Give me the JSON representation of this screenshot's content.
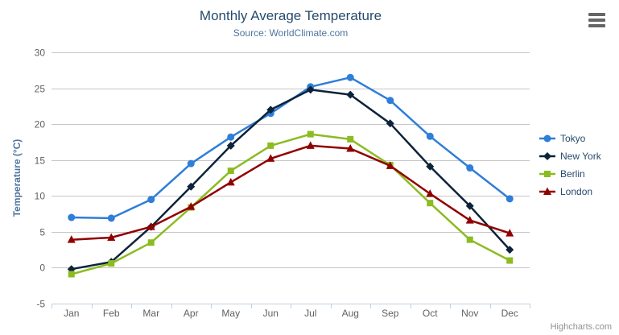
{
  "header": {
    "title": "Monthly Average Temperature",
    "subtitle": "Source: WorldClimate.com"
  },
  "credit": {
    "label": "Highcharts.com"
  },
  "export_menu": {
    "icon": "hamburger-icon"
  },
  "chart_data": {
    "type": "line",
    "title": "Monthly Average Temperature",
    "subtitle": "Source: WorldClimate.com",
    "categories": [
      "Jan",
      "Feb",
      "Mar",
      "Apr",
      "May",
      "Jun",
      "Jul",
      "Aug",
      "Sep",
      "Oct",
      "Nov",
      "Dec"
    ],
    "series": [
      {
        "name": "Tokyo",
        "color": "#2f7ed8",
        "marker": "circle",
        "values": [
          7.0,
          6.9,
          9.5,
          14.5,
          18.2,
          21.5,
          25.2,
          26.5,
          23.3,
          18.3,
          13.9,
          9.6
        ]
      },
      {
        "name": "New York",
        "color": "#0d233a",
        "marker": "diamond",
        "values": [
          -0.2,
          0.8,
          5.7,
          11.3,
          17.0,
          22.0,
          24.8,
          24.1,
          20.1,
          14.1,
          8.6,
          2.5
        ]
      },
      {
        "name": "Berlin",
        "color": "#8bbc21",
        "marker": "square",
        "values": [
          -0.9,
          0.6,
          3.5,
          8.4,
          13.5,
          17.0,
          18.6,
          17.9,
          14.3,
          9.0,
          3.9,
          1.0
        ]
      },
      {
        "name": "London",
        "color": "#910000",
        "marker": "triangle",
        "values": [
          3.9,
          4.2,
          5.7,
          8.5,
          11.9,
          15.2,
          17.0,
          16.6,
          14.2,
          10.3,
          6.6,
          4.8
        ]
      }
    ],
    "xlabel": "",
    "ylabel": "Temperature (°C)",
    "ylim": [
      -5,
      30
    ],
    "yticks": [
      -5,
      0,
      5,
      10,
      15,
      20,
      25,
      30
    ],
    "grid": true,
    "legend_position": "right"
  },
  "colors": {
    "background": "#ffffff",
    "title": "#274b6d",
    "subtitle": "#4d759e",
    "axis_title": "#4d759e",
    "tick_label": "#606060",
    "gridline": "#c6c6c6",
    "axis_line": "#c0d0e0",
    "legend_text": "#274b6d",
    "menu_icon": "#666666",
    "credit": "#909090"
  }
}
